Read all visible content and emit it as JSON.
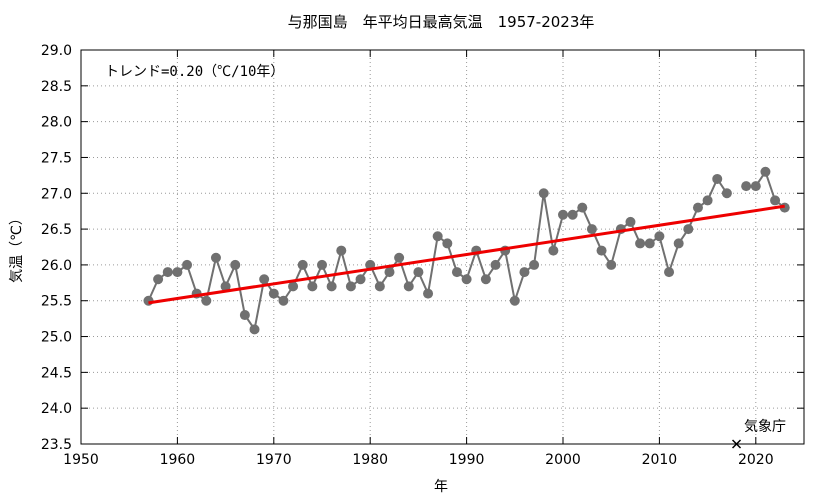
{
  "chart_data": {
    "type": "line",
    "title": "与那国島　年平均日最高気温　1957-2023年",
    "xlabel": "年",
    "ylabel": "気温（℃）",
    "xlim": [
      1950,
      2025
    ],
    "ylim": [
      23.5,
      29.0
    ],
    "xticks": [
      1950,
      1960,
      1970,
      1980,
      1990,
      2000,
      2010,
      2020
    ],
    "yticks": [
      23.5,
      24.0,
      24.5,
      25.0,
      25.5,
      26.0,
      26.5,
      27.0,
      27.5,
      28.0,
      28.5,
      29.0
    ],
    "grid": true,
    "annotation": "トレンド=0.20（℃/10年）",
    "source_label": "気象庁",
    "source_marker_x": 2018,
    "series": [
      {
        "x": [
          1957,
          1958,
          1959,
          1960,
          1961,
          1962,
          1963,
          1964,
          1965,
          1966,
          1967,
          1968,
          1969,
          1970,
          1971,
          1972,
          1973,
          1974,
          1975,
          1976,
          1977,
          1978,
          1979,
          1980,
          1981,
          1982,
          1983,
          1984,
          1985,
          1986,
          1987,
          1988,
          1989,
          1990,
          1991,
          1992,
          1993,
          1994,
          1995,
          1996,
          1997,
          1998,
          1999,
          2000,
          2001,
          2002,
          2003,
          2004,
          2005,
          2006,
          2007,
          2008,
          2009,
          2010,
          2011,
          2012,
          2013,
          2014,
          2015,
          2016,
          2017,
          2019,
          2020,
          2021,
          2022,
          2023
        ],
        "values": [
          25.5,
          25.8,
          25.9,
          25.9,
          26.0,
          25.6,
          25.5,
          26.1,
          25.7,
          26.0,
          25.3,
          25.1,
          25.8,
          25.6,
          25.5,
          25.7,
          26.0,
          25.7,
          26.0,
          25.7,
          26.2,
          25.7,
          25.8,
          26.0,
          25.7,
          25.9,
          26.1,
          25.7,
          25.9,
          25.6,
          26.4,
          26.3,
          25.9,
          25.8,
          26.2,
          25.8,
          26.0,
          26.2,
          25.5,
          25.9,
          26.0,
          27.0,
          26.2,
          26.7,
          26.7,
          26.8,
          26.5,
          26.2,
          26.0,
          26.5,
          26.6,
          26.3,
          26.3,
          26.4,
          25.9,
          26.3,
          26.5,
          26.8,
          26.9,
          27.2,
          27.0,
          27.1,
          27.1,
          27.3,
          26.9,
          26.8
        ],
        "color": "#707070"
      },
      {
        "type": "trend",
        "x": [
          1957,
          2023
        ],
        "values": [
          25.47,
          26.82
        ],
        "color": "#ee0000"
      }
    ]
  }
}
